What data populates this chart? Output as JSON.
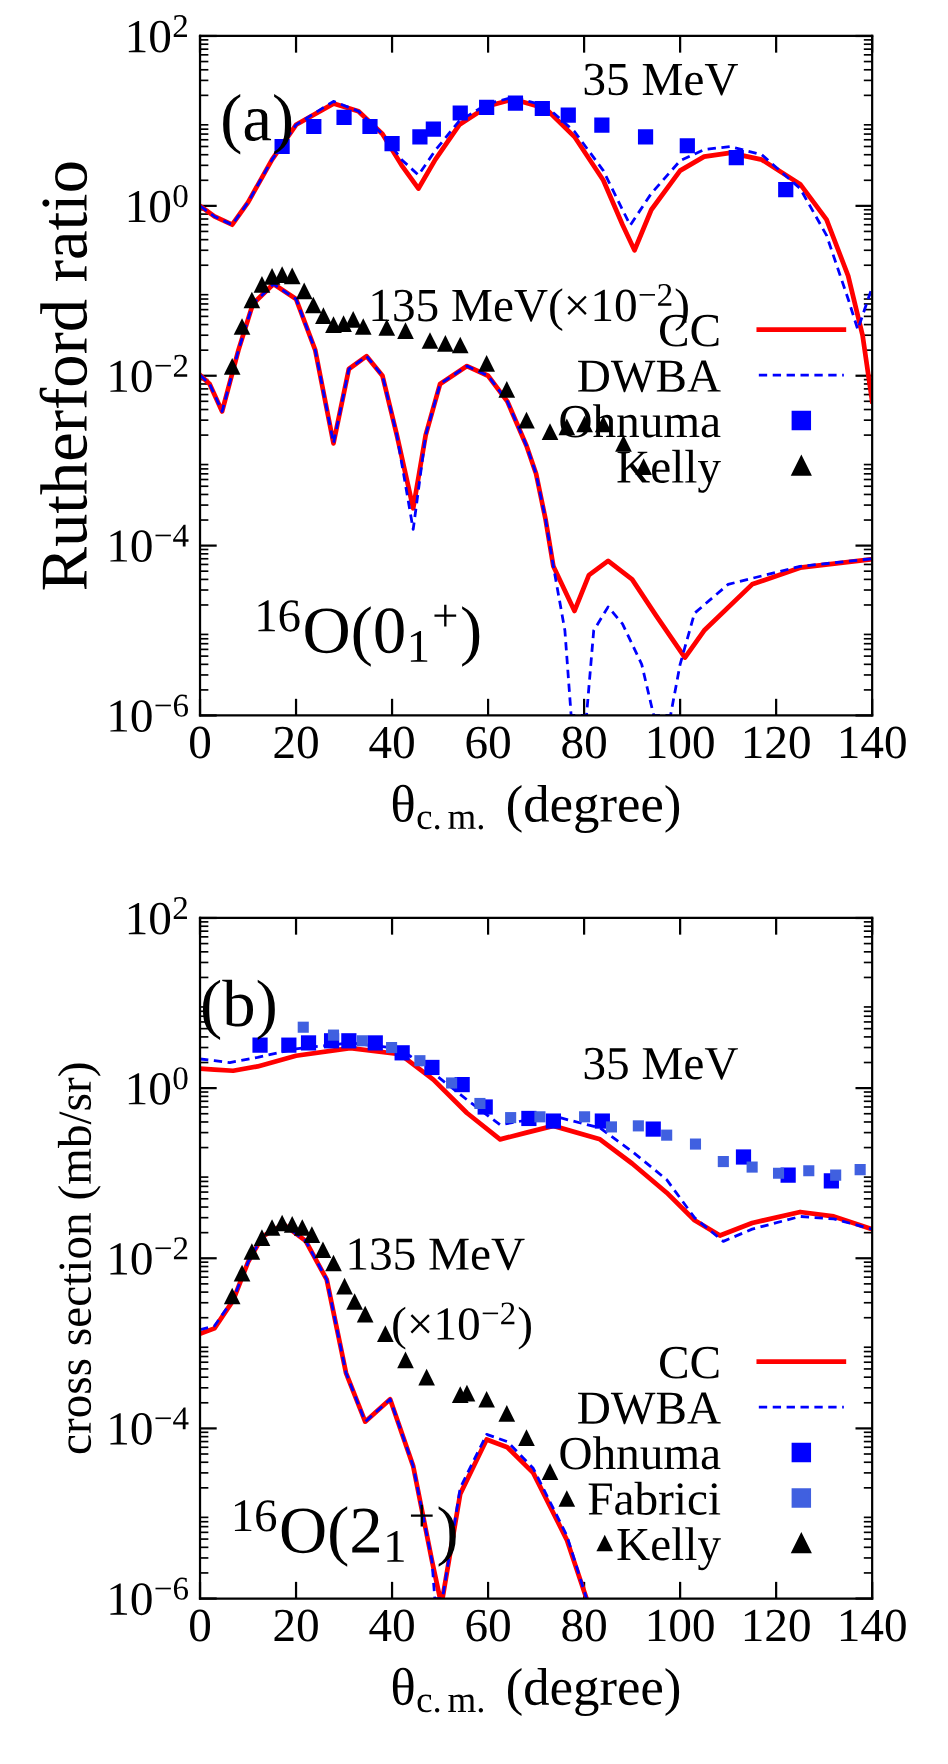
{
  "chart_data": [
    {
      "type": "line",
      "ylabel": "Rutherford ratio",
      "xlabel": "θ$_{c.m.}$ (degree)",
      "log": "y",
      "grid": false,
      "legend": "right",
      "xlim": [
        0,
        140
      ],
      "xticks": [
        0,
        20,
        40,
        60,
        80,
        100,
        120,
        140
      ],
      "ylim": [
        1e-06,
        100
      ],
      "yticks": [
        {
          "value": 100,
          "label": "10$^{2}$"
        },
        {
          "value": 1,
          "label": "10$^{0}$"
        },
        {
          "value": 0.01,
          "label": "10$^{−2}$"
        },
        {
          "value": 0.0001,
          "label": "10$^{−4}$"
        },
        {
          "value": 1e-06,
          "label": "10$^{−6}$"
        }
      ],
      "annotations": [
        "(a)",
        "$^{16}$O(0$_{1}$$^{+}$)",
        "35 MeV",
        "135 MeV(×10$^{−2}$)"
      ],
      "series": [
        {
          "name": "CC",
          "color": "#ff0000",
          "line_style": "solid",
          "marker": "none",
          "x": [
            0,
            3,
            6.7,
            10,
            15,
            20,
            27.8,
            33,
            38,
            42,
            45.5,
            49,
            54,
            60,
            65.3,
            72,
            78,
            84,
            88,
            90.5,
            94,
            100,
            105,
            110.4,
            117,
            125,
            130.5,
            135,
            138,
            140
          ],
          "values": [
            1.0,
            0.75,
            0.6,
            1.1,
            3.5,
            9,
            16,
            13,
            7,
            3,
            1.6,
            3.5,
            9,
            15,
            18,
            14,
            6.5,
            2,
            0.6,
            0.3,
            0.9,
            2.6,
            3.8,
            4.2,
            3.5,
            1.8,
            0.69,
            0.15,
            0.03,
            0.005
          ]
        },
        {
          "name": "DWBA",
          "color": "#0000ff",
          "line_style": "dashed",
          "marker": "none",
          "x": [
            0,
            3,
            6.7,
            10,
            15,
            20,
            27.8,
            33,
            38,
            42,
            45.5,
            49,
            54,
            60,
            65.3,
            72,
            78,
            84,
            89.6,
            94,
            100,
            105,
            110.4,
            117,
            125,
            130.5,
            135,
            137,
            140
          ],
          "values": [
            1.0,
            0.75,
            0.6,
            1.1,
            3.5,
            9,
            17,
            13,
            7,
            3.5,
            2.3,
            4.5,
            10,
            16,
            19,
            15,
            7.5,
            2.6,
            0.59,
            1.4,
            3.4,
            4.6,
            5,
            4,
            1.6,
            0.45,
            0.08,
            0.035,
            0.11
          ]
        },
        {
          "color": "#ff0000",
          "line_style": "solid",
          "marker": "none",
          "x": [
            0,
            2,
            4.6,
            8,
            11,
            15.3,
            20,
            24,
            27.8,
            31,
            34.7,
            38,
            41,
            44.4,
            47,
            50,
            55.6,
            60,
            64,
            68,
            70,
            72,
            73.6,
            78,
            81,
            85,
            90,
            95,
            101,
            105,
            115,
            125,
            140
          ],
          "values": [
            0.0102,
            0.008,
            0.0038,
            0.02,
            0.07,
            0.12,
            0.08,
            0.02,
            0.0016,
            0.012,
            0.017,
            0.01,
            0.002,
            0.000275,
            0.002,
            0.008,
            0.013,
            0.01,
            0.005,
            0.0015,
            0.0007,
            0.0002,
            5.7e-05,
            1.7e-05,
            4.5e-05,
            6.6e-05,
            4e-05,
            1.5e-05,
            4.8e-06,
            1e-05,
            3.5e-05,
            5.5e-05,
            6.9e-05
          ]
        },
        {
          "color": "#0000ff",
          "line_style": "dashed",
          "marker": "none",
          "x": [
            0,
            2,
            4.6,
            8,
            11,
            15.3,
            20,
            24,
            27.8,
            31,
            34.7,
            38,
            41,
            44.4,
            47,
            50,
            55.6,
            60,
            64,
            68,
            70,
            72,
            73.6,
            76,
            77.3,
            80.5,
            82,
            85,
            88,
            92,
            94.5,
            98,
            100,
            103,
            110,
            125,
            140
          ],
          "values": [
            0.0102,
            0.008,
            0.0038,
            0.02,
            0.07,
            0.12,
            0.08,
            0.02,
            0.0016,
            0.012,
            0.017,
            0.01,
            0.002,
            0.000155,
            0.002,
            0.008,
            0.013,
            0.01,
            0.005,
            0.0015,
            0.0007,
            0.0002,
            5.7e-05,
            1e-05,
            1e-06,
            1e-06,
            1e-05,
            1.9e-05,
            1.2e-05,
            4e-06,
            1e-06,
            1e-06,
            4e-06,
            1.6e-05,
            3.5e-05,
            5.7e-05,
            7e-05
          ]
        },
        {
          "name": "Ohnuma",
          "type": "scatter",
          "color": "#0000ff",
          "marker": "square",
          "x": [
            17.1,
            23.7,
            30,
            35.4,
            40,
            45.8,
            48.6,
            54.2,
            59.7,
            65.7,
            71.3,
            76.7,
            83.7,
            92.8,
            101.5,
            111.7,
            122
          ],
          "values": [
            5.0,
            8.6,
            11,
            8.6,
            5.4,
            6.5,
            8,
            12.4,
            14.4,
            16.2,
            14,
            11.7,
            8.9,
            6.5,
            5.1,
            3.7,
            1.55
          ]
        },
        {
          "name": "Kelly",
          "type": "scatter",
          "color": "#000000",
          "marker": "triangle",
          "x": [
            6.7,
            8.75,
            10.8,
            12.9,
            15,
            17.1,
            19.2,
            21.7,
            23.6,
            25.7,
            27.8,
            29.9,
            31.9,
            34,
            38.9,
            42.8,
            47.9,
            51.1,
            54.2,
            59.7,
            63.9,
            68,
            72.9,
            76.4,
            80.1,
            84,
            88.2,
            92.4
          ],
          "values": [
            0.0129,
            0.038,
            0.078,
            0.119,
            0.148,
            0.155,
            0.15,
            0.1,
            0.068,
            0.051,
            0.04,
            0.041,
            0.046,
            0.038,
            0.037,
            0.034,
            0.026,
            0.024,
            0.023,
            0.014,
            0.0069,
            0.003,
            0.0022,
            0.0025,
            0.0027,
            0.0027,
            0.0016,
            0.00085
          ]
        }
      ]
    },
    {
      "type": "line",
      "ylabel": "cross section (mb/sr)",
      "xlabel": "θ$_{c.m.}$ (degree)",
      "log": "y",
      "grid": false,
      "legend": "bottom right",
      "xlim": [
        0,
        140
      ],
      "xticks": [
        0,
        20,
        40,
        60,
        80,
        100,
        120,
        140
      ],
      "ylim": [
        1e-06,
        100
      ],
      "yticks": [
        {
          "value": 100,
          "label": "10$^{2}$"
        },
        {
          "value": 1,
          "label": "10$^{0}$"
        },
        {
          "value": 0.01,
          "label": "10$^{−2}$"
        },
        {
          "value": 0.0001,
          "label": "10$^{−4}$"
        },
        {
          "value": 1e-06,
          "label": "10$^{−6}$"
        }
      ],
      "annotations": [
        "(b)",
        "$^{16}$O(2$_{1}$$^{+}$)",
        "35 MeV",
        "135 MeV",
        "(×10$^{−2}$)"
      ],
      "series": [
        {
          "name": "CC",
          "color": "#ff0000",
          "line_style": "solid",
          "marker": "none",
          "x": [
            0,
            3,
            6.9,
            12,
            20,
            31.3,
            41.7,
            48.6,
            55.6,
            62.5,
            68,
            73.6,
            83.3,
            90,
            97.2,
            103,
            108.3,
            115,
            125,
            132,
            140
          ],
          "values": [
            1.7,
            1.65,
            1.6,
            1.8,
            2.4,
            2.95,
            2.5,
            1.26,
            0.51,
            0.25,
            0.3,
            0.36,
            0.25,
            0.13,
            0.059,
            0.028,
            0.0185,
            0.026,
            0.035,
            0.031,
            0.022
          ]
        },
        {
          "name": "DWBA",
          "color": "#0000ff",
          "line_style": "dashed",
          "marker": "none",
          "x": [
            0,
            3,
            6.2,
            12,
            20,
            31.3,
            41.7,
            48.6,
            55.6,
            62.5,
            68,
            73.6,
            83.3,
            90,
            97.2,
            103,
            109,
            115,
            125,
            132,
            140
          ],
          "values": [
            2.2,
            2.1,
            2.0,
            2.3,
            2.9,
            3.4,
            2.9,
            1.5,
            0.73,
            0.37,
            0.42,
            0.47,
            0.34,
            0.18,
            0.084,
            0.03,
            0.0158,
            0.022,
            0.031,
            0.029,
            0.022
          ]
        },
        {
          "color": "#ff0000",
          "line_style": "solid",
          "marker": "none",
          "x": [
            0,
            3,
            6.9,
            10,
            13,
            17.4,
            22,
            26.4,
            30.4,
            34.4,
            39.6,
            44.4,
            48.3,
            50,
            50.5,
            54.2,
            59.7,
            64,
            69.4,
            76.4,
            80.5
          ],
          "values": [
            0.0013,
            0.0015,
            0.0032,
            0.009,
            0.018,
            0.025,
            0.016,
            0.0056,
            0.00045,
            0.00012,
            0.00022,
            3.6e-05,
            2.8e-06,
            1e-06,
            1e-06,
            1.7e-05,
            7.4e-05,
            6e-05,
            3e-05,
            4.9e-06,
            1e-06
          ]
        },
        {
          "color": "#0000ff",
          "line_style": "dashed",
          "marker": "none",
          "x": [
            0,
            3,
            6.9,
            10,
            13,
            17.4,
            22,
            26.4,
            30.4,
            34.4,
            39.6,
            44.4,
            48.3,
            48.9,
            50.5,
            54.2,
            59.7,
            64,
            69.4,
            76.4,
            80.5
          ],
          "values": [
            0.00145,
            0.0016,
            0.0033,
            0.009,
            0.018,
            0.025,
            0.016,
            0.0056,
            0.00045,
            0.00012,
            0.00022,
            3.6e-05,
            2.8e-06,
            1e-06,
            1e-06,
            2e-05,
            8.5e-05,
            7e-05,
            3.4e-05,
            5.5e-06,
            1e-06
          ]
        },
        {
          "name": "Ohnuma",
          "type": "scatter",
          "color": "#0000ff",
          "marker": "square",
          "x": [
            12.5,
            18.5,
            22.6,
            27.4,
            31,
            36.5,
            42.1,
            48.3,
            54.6,
            59.4,
            68.5,
            73.6,
            83.8,
            94.4,
            113.2,
            122.5,
            131.5
          ],
          "values": [
            3.2,
            3.2,
            3.4,
            3.6,
            3.6,
            3.4,
            2.6,
            1.75,
            1.1,
            0.6,
            0.44,
            0.41,
            0.41,
            0.33,
            0.155,
            0.095,
            0.081
          ]
        },
        {
          "name": "Fabrici",
          "type": "scatter",
          "color": "#4060e0",
          "marker": "square",
          "x": [
            21.5,
            27.8,
            33.8,
            39.9,
            45.8,
            52.4,
            58.3,
            64.7,
            70.8,
            80.1,
            85.7,
            91.3,
            97.2,
            103.2,
            109,
            115,
            120.5,
            126.8,
            132.4,
            137.5
          ],
          "values": [
            5.2,
            4.2,
            3.6,
            3.0,
            2.1,
            1.15,
            0.66,
            0.45,
            0.46,
            0.46,
            0.35,
            0.36,
            0.28,
            0.22,
            0.137,
            0.118,
            0.1,
            0.107,
            0.095,
            0.11
          ]
        },
        {
          "name": "Kelly",
          "type": "scatter",
          "color": "#000000",
          "marker": "triangle",
          "x": [
            6.7,
            8.75,
            10.8,
            12.9,
            15,
            17.1,
            19.2,
            21.3,
            23.3,
            25.6,
            27.8,
            30.1,
            32.2,
            34.4,
            38.6,
            42.8,
            47.2,
            54.2,
            55.6,
            59.7,
            63.9,
            68,
            72.9,
            76.4,
            84.3
          ],
          "values": [
            0.0036,
            0.0067,
            0.012,
            0.0175,
            0.023,
            0.026,
            0.025,
            0.023,
            0.019,
            0.0126,
            0.0088,
            0.0047,
            0.0031,
            0.0022,
            0.0013,
            0.00064,
            0.0004,
            0.00025,
            0.00026,
            0.00022,
            0.00015,
            7.8e-05,
            3.1e-05,
            1.5e-05,
            4.5e-06
          ]
        }
      ]
    }
  ]
}
